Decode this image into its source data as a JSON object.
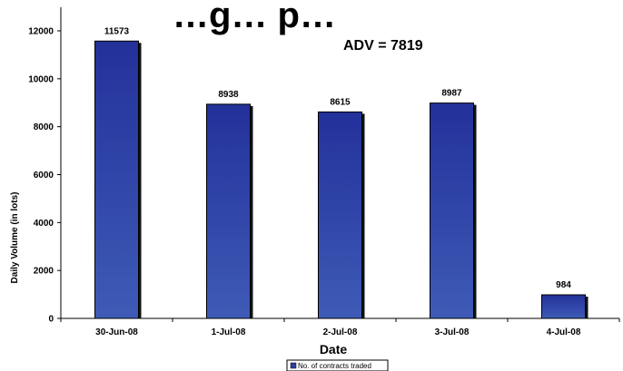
{
  "chart_data": {
    "type": "bar",
    "title": "…g… p…",
    "xlabel": "Date",
    "ylabel": "Daily Volume (in lots)",
    "annotation": "ADV = 7819",
    "categories": [
      "30-Jun-08",
      "1-Jul-08",
      "2-Jul-08",
      "3-Jul-08",
      "4-Jul-08"
    ],
    "series": [
      {
        "name": "No. of contracts traded",
        "values": [
          11573,
          8938,
          8615,
          8987,
          984
        ]
      }
    ],
    "ylim": [
      0,
      12000
    ],
    "yticks": [
      0,
      2000,
      4000,
      6000,
      8000,
      10000,
      12000
    ],
    "grid": false,
    "legend_position": "bottom-center",
    "bar_color": "#2e3fa0"
  }
}
